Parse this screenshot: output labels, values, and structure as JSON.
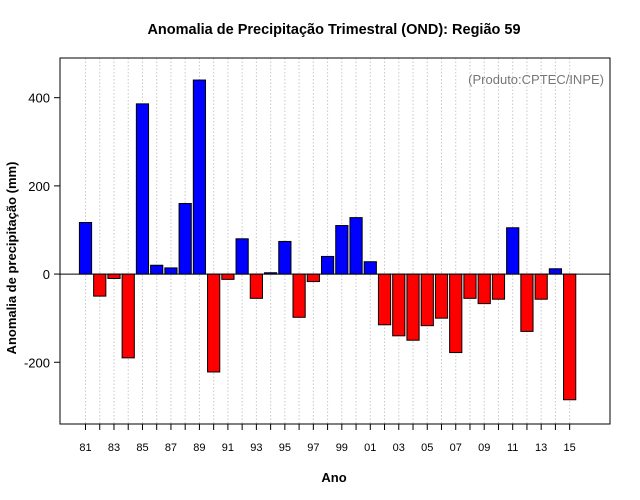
{
  "chart_data": {
    "type": "bar",
    "title": "Anomalia de Precipitação Trimestral (OND): Região 59",
    "xlabel": "Ano",
    "ylabel": "Anomalia de precipitação (mm)",
    "annotation": "(Produto:CPTEC/INPE)",
    "annotation_position": "top-right",
    "ylim": [
      -340,
      490
    ],
    "grid": true,
    "y_ticks": [
      -200,
      0,
      200,
      400
    ],
    "y_tick_labels": [
      "-200",
      "0",
      "200",
      "400"
    ],
    "x_tick_labels": [
      "81",
      "83",
      "85",
      "87",
      "89",
      "91",
      "93",
      "95",
      "97",
      "99",
      "01",
      "03",
      "05",
      "07",
      "09",
      "11",
      "13",
      "15"
    ],
    "categories": [
      "81",
      "82",
      "83",
      "84",
      "85",
      "86",
      "87",
      "88",
      "89",
      "90",
      "91",
      "92",
      "93",
      "94",
      "95",
      "96",
      "97",
      "98",
      "99",
      "00",
      "01",
      "02",
      "03",
      "04",
      "05",
      "06",
      "07",
      "08",
      "09",
      "10",
      "11",
      "12",
      "13",
      "14",
      "15"
    ],
    "values": [
      117,
      -50,
      -10,
      -190,
      386,
      20,
      14,
      160,
      440,
      -222,
      -12,
      80,
      -55,
      3,
      74,
      -98,
      -17,
      40,
      110,
      128,
      28,
      -115,
      -140,
      -150,
      -117,
      -100,
      -178,
      -55,
      -67,
      -57,
      105,
      -130,
      -57,
      12,
      -285
    ],
    "colors": {
      "positive": "#0000ff",
      "negative": "#ff0000"
    }
  }
}
